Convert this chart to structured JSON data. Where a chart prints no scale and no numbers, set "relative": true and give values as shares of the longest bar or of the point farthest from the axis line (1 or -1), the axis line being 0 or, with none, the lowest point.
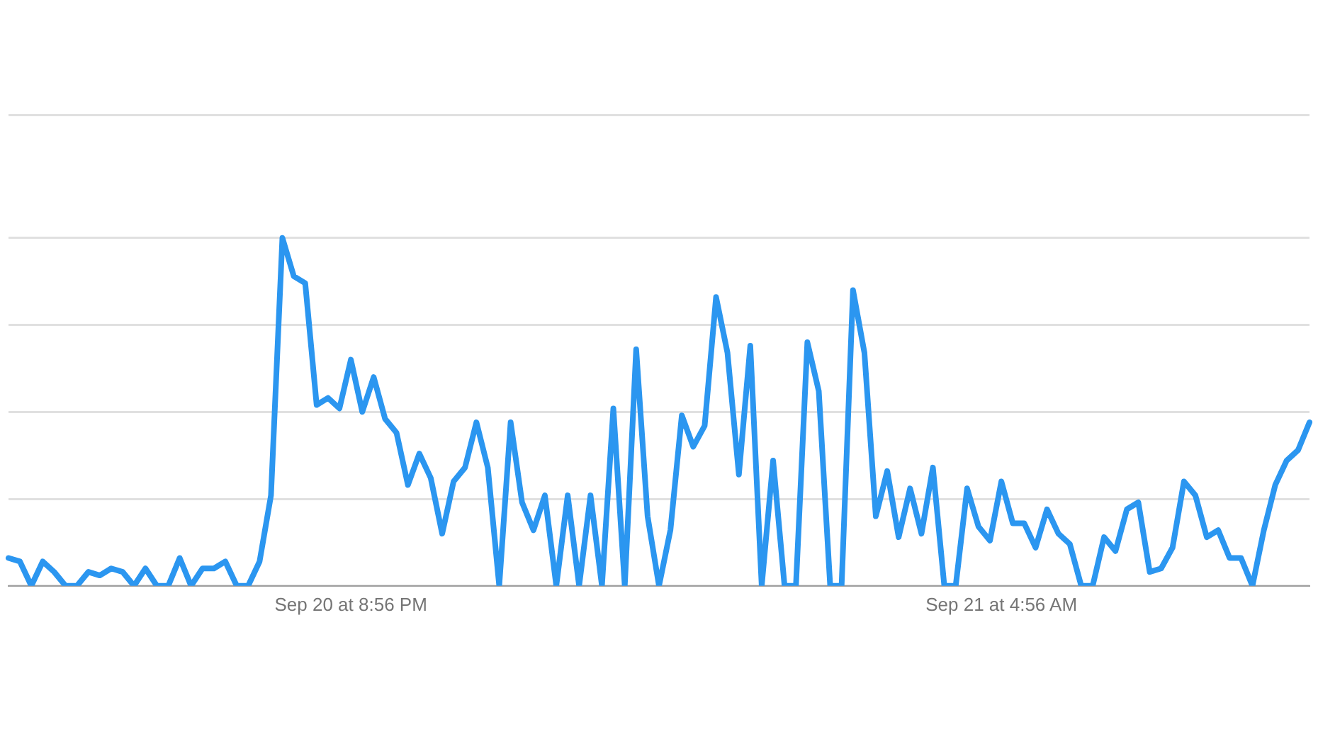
{
  "chart_data": {
    "type": "line",
    "relative": true,
    "grid": "y",
    "marker": "none",
    "line_style": "solid",
    "legend": false,
    "categories": [
      null,
      null,
      null,
      null,
      null,
      null,
      null,
      null,
      null,
      null,
      null,
      null,
      null,
      null,
      null,
      null,
      null,
      null,
      null,
      null,
      null,
      null,
      null,
      null,
      null,
      null,
      null,
      null,
      null,
      null,
      "Sep 20 at 8:56 PM",
      null,
      null,
      null,
      null,
      null,
      null,
      null,
      null,
      null,
      null,
      null,
      null,
      null,
      null,
      null,
      null,
      null,
      null,
      null,
      null,
      null,
      null,
      null,
      null,
      null,
      null,
      null,
      null,
      null,
      null,
      null,
      null,
      null,
      null,
      null,
      null,
      null,
      null,
      null,
      null,
      null,
      null,
      null,
      null,
      null,
      null,
      null,
      null,
      null,
      null,
      null,
      null,
      null,
      null,
      null,
      null,
      "Sep 21 at 4:56 AM",
      null,
      null,
      null,
      null,
      null,
      null,
      null,
      null,
      null,
      null,
      null,
      null,
      null,
      null,
      null,
      null,
      null,
      null,
      null,
      null,
      null,
      null,
      null,
      null,
      null,
      null,
      null
    ],
    "series": [
      {
        "color": "#2b96f0",
        "values": [
          0.08,
          0.07,
          0,
          0.07,
          0.04,
          0,
          0,
          0.04,
          0.03,
          0.05,
          0.04,
          0,
          0.05,
          0,
          0,
          0.08,
          0,
          0.05,
          0.05,
          0.07,
          0,
          0,
          0.07,
          0.26,
          1,
          0.89,
          0.87,
          0.52,
          0.54,
          0.51,
          0.65,
          0.5,
          0.6,
          0.48,
          0.44,
          0.29,
          0.38,
          0.31,
          0.15,
          0.3,
          0.34,
          0.47,
          0.34,
          0,
          0.47,
          0.24,
          0.16,
          0.26,
          0,
          0.26,
          0,
          0.26,
          0,
          0.51,
          0,
          0.68,
          0.2,
          0,
          0.16,
          0.49,
          0.4,
          0.46,
          0.83,
          0.67,
          0.32,
          0.69,
          0,
          0.36,
          0,
          0,
          0.7,
          0.56,
          0,
          0,
          0.85,
          0.67,
          0.2,
          0.33,
          0.14,
          0.28,
          0.15,
          0.34,
          0,
          0,
          0.28,
          0.17,
          0.13,
          0.3,
          0.18,
          0.18,
          0.11,
          0.22,
          0.15,
          0.12,
          0,
          0,
          0.14,
          0.1,
          0.22,
          0.24,
          0.04,
          0.05,
          0.11,
          0.3,
          0.26,
          0.14,
          0.16,
          0.08,
          0.08,
          0,
          0.16,
          0.29,
          0.36,
          0.39,
          0.47
        ]
      }
    ]
  }
}
